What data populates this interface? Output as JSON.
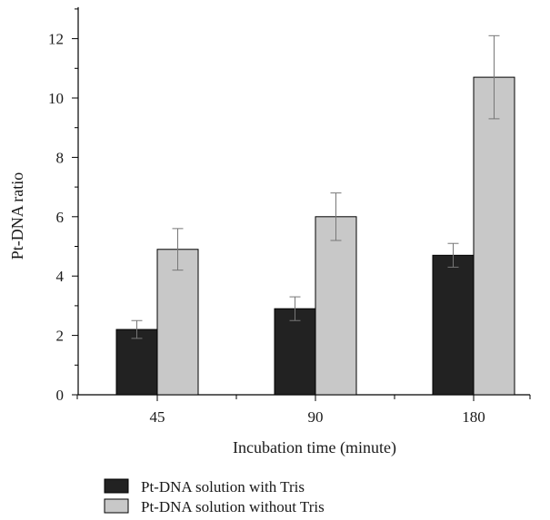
{
  "chart_data": {
    "type": "bar",
    "categories": [
      "45",
      "90",
      "180"
    ],
    "xlabel": "Incubation time (minute)",
    "ylabel": "Pt-DNA ratio",
    "ylim": [
      0,
      13
    ],
    "yticks": [
      0,
      2,
      4,
      6,
      8,
      10,
      12
    ],
    "grid": false,
    "legend_position": "bottom-left",
    "series": [
      {
        "name": "Pt-DNA solution with Tris",
        "color": "#222222",
        "values": [
          2.2,
          2.9,
          4.7
        ],
        "errors": [
          0.3,
          0.4,
          0.4
        ]
      },
      {
        "name": "Pt-DNA solution without Tris",
        "color": "#c8c8c8",
        "values": [
          4.9,
          6.0,
          10.7
        ],
        "errors": [
          0.7,
          0.8,
          1.4
        ]
      }
    ]
  }
}
